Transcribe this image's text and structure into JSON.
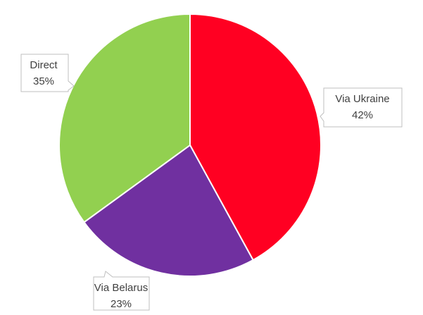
{
  "chart_data": {
    "type": "pie",
    "categories": [
      "Via Ukraine",
      "Via Belarus",
      "Direct"
    ],
    "values": [
      42,
      23,
      35
    ],
    "value_labels": [
      "42%",
      "23%",
      "35%"
    ],
    "colors": [
      "#ff0022",
      "#7030a0",
      "#92d050"
    ]
  }
}
